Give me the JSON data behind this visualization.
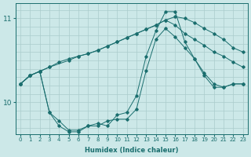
{
  "background_color": "#cce8e8",
  "grid_color": "#aacccc",
  "line_color": "#1a6e6e",
  "x_label": "Humidex (Indice chaleur)",
  "xlim": [
    -0.5,
    23.5
  ],
  "ylim": [
    9.62,
    11.18
  ],
  "yticks": [
    10,
    11
  ],
  "xticks": [
    0,
    1,
    2,
    3,
    4,
    5,
    6,
    7,
    8,
    9,
    10,
    11,
    12,
    13,
    14,
    15,
    16,
    17,
    18,
    19,
    20,
    21,
    22,
    23
  ],
  "series": [
    {
      "x": [
        0,
        1,
        2,
        3,
        5,
        6,
        7,
        8,
        9,
        10,
        11,
        12,
        13,
        14,
        15,
        16,
        17,
        18,
        19,
        20,
        21,
        22,
        23
      ],
      "y": [
        10.22,
        10.32,
        10.37,
        10.42,
        10.5,
        10.55,
        10.58,
        10.62,
        10.67,
        10.72,
        10.77,
        10.82,
        10.87,
        10.92,
        10.98,
        11.02,
        11.0,
        10.95,
        10.88,
        10.82,
        10.75,
        10.65,
        10.6
      ]
    },
    {
      "x": [
        0,
        1,
        2,
        3,
        4,
        5,
        6,
        7,
        8,
        9,
        10,
        11,
        12,
        13,
        14,
        15,
        16,
        17,
        18,
        19,
        20,
        21,
        22,
        23
      ],
      "y": [
        10.22,
        10.32,
        10.37,
        10.42,
        10.48,
        10.52,
        10.55,
        10.58,
        10.62,
        10.67,
        10.72,
        10.77,
        10.82,
        10.87,
        10.92,
        10.98,
        10.92,
        10.82,
        10.75,
        10.68,
        10.6,
        10.55,
        10.48,
        10.42
      ]
    },
    {
      "x": [
        0,
        1,
        2,
        3,
        4,
        5,
        6,
        7,
        8,
        9,
        10,
        11,
        12,
        13,
        14,
        15,
        16,
        17,
        18,
        19,
        20,
        21,
        22,
        23
      ],
      "y": [
        10.22,
        10.32,
        10.37,
        9.88,
        9.78,
        9.67,
        9.67,
        9.72,
        9.75,
        9.72,
        9.85,
        9.88,
        10.08,
        10.55,
        10.85,
        11.08,
        11.08,
        10.72,
        10.52,
        10.35,
        10.22,
        10.18,
        10.22,
        10.22
      ]
    },
    {
      "x": [
        0,
        1,
        2,
        3,
        4,
        5,
        6,
        7,
        8,
        9,
        10,
        11,
        12,
        13,
        14,
        15,
        16,
        17,
        18,
        19,
        20,
        21,
        22,
        23
      ],
      "y": [
        10.22,
        10.32,
        10.37,
        9.88,
        9.72,
        9.65,
        9.65,
        9.72,
        9.72,
        9.78,
        9.8,
        9.8,
        9.92,
        10.38,
        10.75,
        10.88,
        10.78,
        10.65,
        10.52,
        10.32,
        10.18,
        10.18,
        10.22,
        10.22
      ]
    }
  ]
}
